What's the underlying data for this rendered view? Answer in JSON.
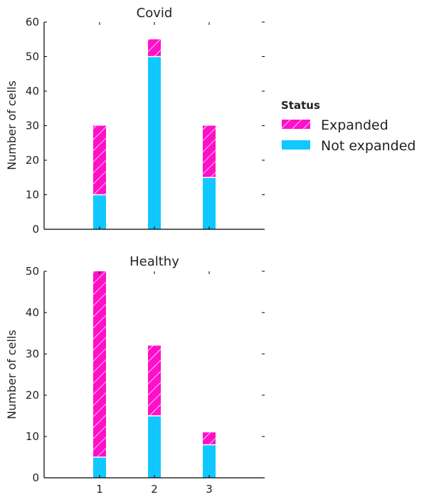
{
  "chart_data": [
    {
      "type": "bar",
      "stacked": true,
      "title": "Covid",
      "xlabel": "",
      "ylabel": "Number of cells",
      "categories": [
        "1",
        "2",
        "3"
      ],
      "show_xtick_labels": false,
      "ylim": [
        0,
        60
      ],
      "yticks": [
        0,
        10,
        20,
        30,
        40,
        50,
        60
      ],
      "series": [
        {
          "name": "Not expanded",
          "values": [
            10,
            50,
            15
          ]
        },
        {
          "name": "Expanded",
          "values": [
            20,
            5,
            15
          ]
        }
      ]
    },
    {
      "type": "bar",
      "stacked": true,
      "title": "Healthy",
      "xlabel": "",
      "ylabel": "Number of cells",
      "categories": [
        "1",
        "2",
        "3"
      ],
      "show_xtick_labels": true,
      "ylim": [
        0,
        50
      ],
      "yticks": [
        0,
        10,
        20,
        30,
        40,
        50
      ],
      "series": [
        {
          "name": "Not expanded",
          "values": [
            5,
            15,
            8
          ]
        },
        {
          "name": "Expanded",
          "values": [
            45,
            17,
            3
          ]
        }
      ]
    }
  ],
  "legend": {
    "title": "Status",
    "placement": "right",
    "items": [
      {
        "label": "Expanded",
        "color": "#ff10c8",
        "hatch": true
      },
      {
        "label": "Not expanded",
        "color": "#10c8ff",
        "hatch": false
      }
    ]
  },
  "colors": {
    "Expanded": "#ff10c8",
    "Not expanded": "#10c8ff"
  }
}
